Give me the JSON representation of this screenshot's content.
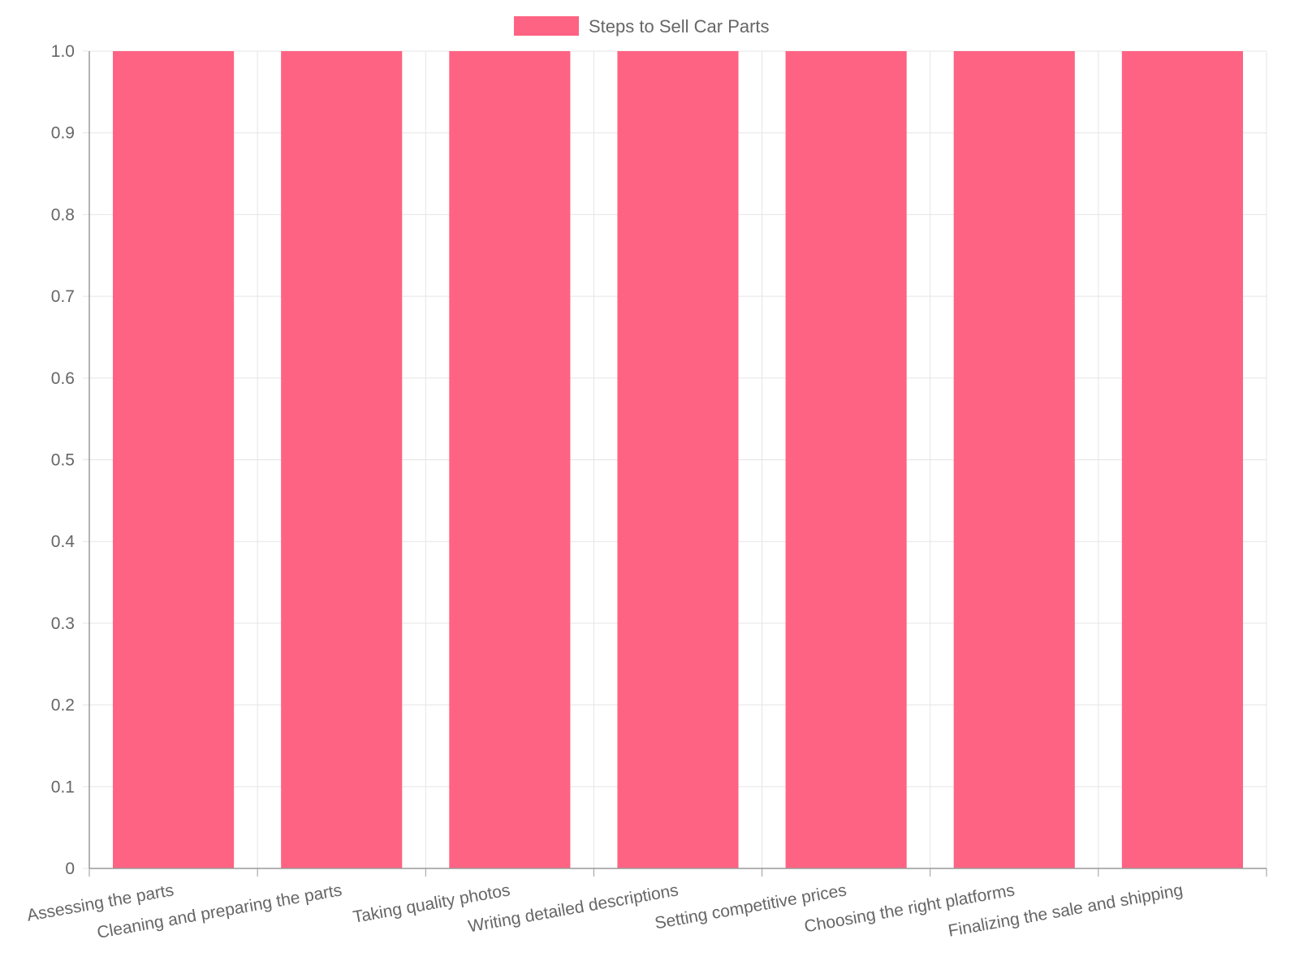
{
  "chart_data": {
    "type": "bar",
    "categories": [
      "Assessing the parts",
      "Cleaning and preparing the parts",
      "Taking quality photos",
      "Writing detailed descriptions",
      "Setting competitive prices",
      "Choosing the right platforms",
      "Finalizing the sale and shipping"
    ],
    "series": [
      {
        "name": "Steps to Sell Car Parts",
        "values": [
          1,
          1,
          1,
          1,
          1,
          1,
          1
        ],
        "color": "#ff6384"
      }
    ],
    "yticks": [
      "0",
      "0.1",
      "0.2",
      "0.3",
      "0.4",
      "0.5",
      "0.6",
      "0.7",
      "0.8",
      "0.9",
      "1.0"
    ],
    "ylim": [
      0,
      1
    ],
    "grid": true,
    "legend_position": "top-center",
    "colors": {
      "grid": "#e5e5e5",
      "axis": "#9a9a9a",
      "text": "#666666"
    }
  }
}
